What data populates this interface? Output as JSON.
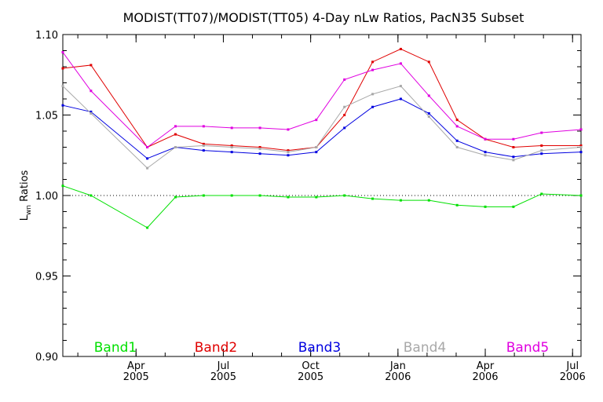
{
  "chart_data": {
    "type": "line",
    "title": "MODIST(TT07)/MODIST(TT05) 4-Day nLw Ratios, PacN35 Subset",
    "ylabel": "Lwn Ratios",
    "ylabel_main": "L",
    "ylabel_sub": "wn",
    "ylabel_rest": " Ratios",
    "xlim": [
      0,
      18.4
    ],
    "ylim": [
      0.9,
      1.1
    ],
    "y_ticks": [
      0.9,
      0.95,
      1.0,
      1.05,
      1.1
    ],
    "y_tick_labels": [
      "0.90",
      "0.95",
      "1.00",
      "1.05",
      "1.10"
    ],
    "x_ticks": [
      {
        "x": 2.6,
        "month": "Apr",
        "year": "2005"
      },
      {
        "x": 5.7,
        "month": "Jul",
        "year": "2005"
      },
      {
        "x": 8.8,
        "month": "Oct",
        "year": "2005"
      },
      {
        "x": 11.9,
        "month": "Jan",
        "year": "2006"
      },
      {
        "x": 15.0,
        "month": "Apr",
        "year": "2006"
      },
      {
        "x": 18.1,
        "month": "Jul",
        "year": "2006"
      }
    ],
    "reference_line": 1.0,
    "x": [
      0,
      1,
      3,
      4,
      5,
      6,
      7,
      8,
      9,
      10,
      11,
      12,
      13,
      14,
      15,
      16,
      17,
      18.4
    ],
    "series": [
      {
        "name": "Band1",
        "color": "#00e000",
        "values": [
          1.006,
          1.0,
          0.98,
          0.999,
          1.0,
          1.0,
          1.0,
          0.999,
          0.999,
          1.0,
          0.998,
          0.997,
          0.997,
          0.994,
          0.993,
          0.993,
          1.001,
          1.0
        ]
      },
      {
        "name": "Band2",
        "color": "#e00000",
        "values": [
          1.079,
          1.081,
          1.03,
          1.038,
          1.032,
          1.031,
          1.03,
          1.028,
          1.03,
          1.05,
          1.083,
          1.091,
          1.083,
          1.047,
          1.035,
          1.03,
          1.031,
          1.031
        ]
      },
      {
        "name": "Band3",
        "color": "#0000e0",
        "values": [
          1.056,
          1.052,
          1.023,
          1.03,
          1.028,
          1.027,
          1.026,
          1.025,
          1.027,
          1.042,
          1.055,
          1.06,
          1.051,
          1.034,
          1.027,
          1.024,
          1.026,
          1.027
        ]
      },
      {
        "name": "Band4",
        "color": "#a8a8a8",
        "values": [
          1.068,
          1.051,
          1.017,
          1.03,
          1.031,
          1.03,
          1.029,
          1.027,
          1.03,
          1.055,
          1.063,
          1.068,
          1.049,
          1.03,
          1.025,
          1.022,
          1.028,
          1.03
        ]
      },
      {
        "name": "Band5",
        "color": "#e000e0",
        "values": [
          1.089,
          1.065,
          1.03,
          1.043,
          1.043,
          1.042,
          1.042,
          1.041,
          1.047,
          1.072,
          1.078,
          1.082,
          1.062,
          1.043,
          1.035,
          1.035,
          1.039,
          1.041
        ]
      }
    ],
    "legend": [
      {
        "label": "Band1",
        "color": "#00e000"
      },
      {
        "label": "Band2",
        "color": "#e00000"
      },
      {
        "label": "Band3",
        "color": "#0000e0"
      },
      {
        "label": "Band4",
        "color": "#a8a8a8"
      },
      {
        "label": "Band5",
        "color": "#e000e0"
      }
    ],
    "legend_placement": "bottom inside plot",
    "grid": false
  }
}
